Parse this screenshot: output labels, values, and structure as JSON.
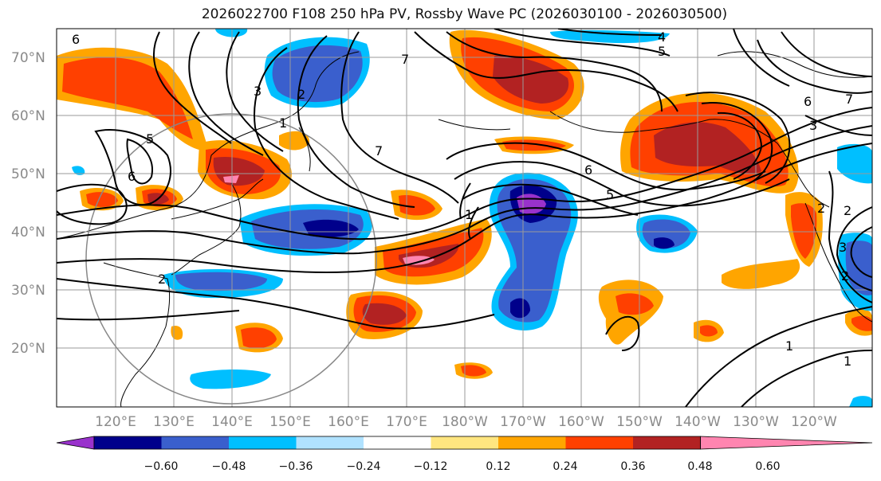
{
  "title": "2026022700 F108 250 hPa PV, Rossby Wave PC (2026030100 - 2026030500)",
  "lat_labels": [
    "70°N",
    "60°N",
    "50°N",
    "40°N",
    "30°N",
    "20°N"
  ],
  "lon_labels": [
    "120°E",
    "130°E",
    "140°E",
    "150°E",
    "160°E",
    "170°E",
    "180°W",
    "170°W",
    "160°W",
    "150°W",
    "140°W",
    "130°W",
    "120°W"
  ],
  "colorbar": {
    "ticks": [
      "−0.60",
      "−0.48",
      "−0.36",
      "−0.24",
      "−0.12",
      "0.12",
      "0.24",
      "0.36",
      "0.48",
      "0.60"
    ],
    "colors": [
      "#9932cc",
      "#00008b",
      "#3a5fcd",
      "#00bfff",
      "#b0e2ff",
      "#ffffff",
      "#ffe680",
      "#ffa500",
      "#ff4000",
      "#b22222",
      "#ff85b0"
    ]
  },
  "contour_labels": [
    "1",
    "2",
    "3",
    "4",
    "5",
    "6",
    "7"
  ],
  "contour_label_instances": [
    "3",
    "2",
    "1",
    "5",
    "6",
    "7",
    "2",
    "4",
    "5",
    "6",
    "5",
    "7",
    "6",
    "7",
    "3",
    "2",
    "1",
    "1",
    "1",
    "2",
    "3",
    "6",
    "2"
  ]
}
